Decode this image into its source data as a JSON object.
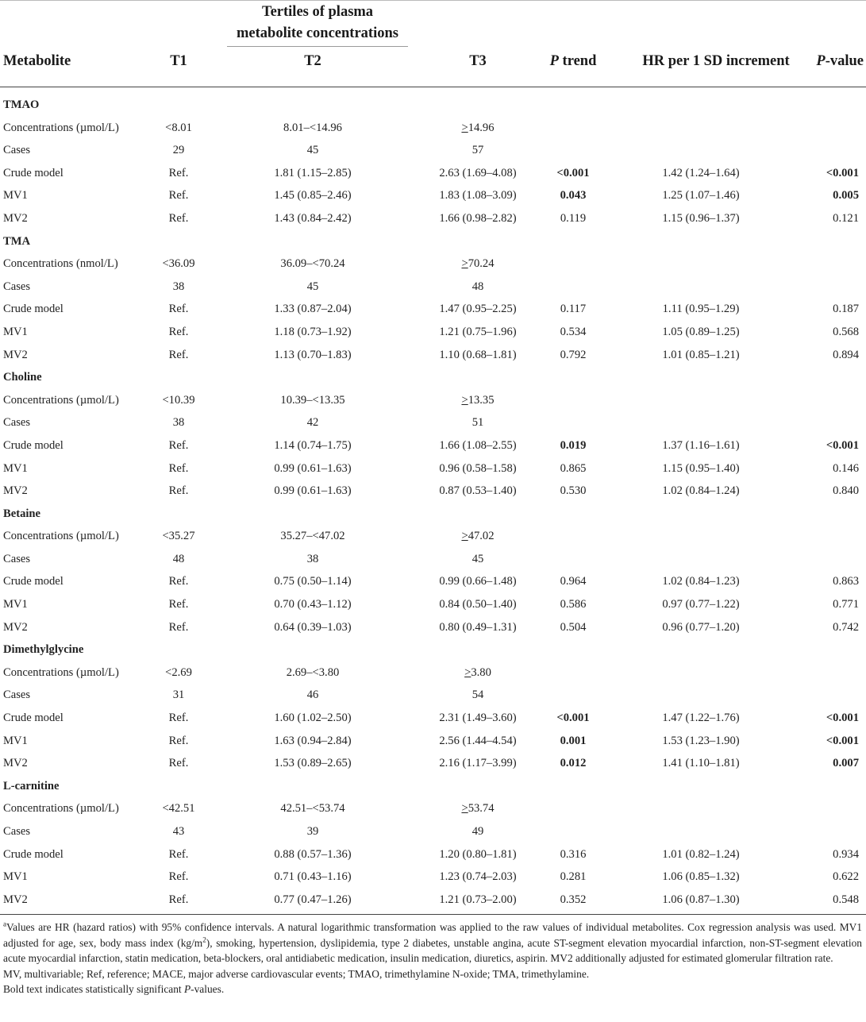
{
  "table": {
    "group_header_line1": "Tertiles of plasma",
    "group_header_line2": "metabolite concentrations",
    "columns": {
      "metabolite": "Metabolite",
      "t1": "T1",
      "t2": "T2",
      "t3": "T3",
      "p_trend_italic": "P",
      "p_trend_rest": " trend",
      "hr": "HR per 1 SD increment",
      "p_value_italic": "P",
      "p_value_rest": "-value"
    },
    "sections": [
      {
        "name": "TMAO",
        "rows": [
          {
            "label": "Concentrations (µmol/L)",
            "t1": "<8.01",
            "t2": "8.01–<14.96",
            "t3_prefix": ">",
            "t3": "14.96",
            "p_trend": "",
            "hr": "",
            "p_value": ""
          },
          {
            "label": "Cases",
            "t1": "29",
            "t2": "45",
            "t3": "57",
            "p_trend": "",
            "hr": "",
            "p_value": ""
          },
          {
            "label": "Crude model",
            "t1": "Ref.",
            "t2": "1.81 (1.15–2.85)",
            "t3": "2.63 (1.69–4.08)",
            "p_trend": "<0.001",
            "p_trend_bold": true,
            "hr": "1.42 (1.24–1.64)",
            "p_value": "<0.001",
            "p_value_bold": true
          },
          {
            "label": "MV1",
            "t1": "Ref.",
            "t2": "1.45 (0.85–2.46)",
            "t3": "1.83 (1.08–3.09)",
            "p_trend": "0.043",
            "p_trend_bold": true,
            "hr": "1.25 (1.07–1.46)",
            "p_value": "0.005",
            "p_value_bold": true
          },
          {
            "label": "MV2",
            "t1": "Ref.",
            "t2": "1.43 (0.84–2.42)",
            "t3": "1.66 (0.98–2.82)",
            "p_trend": "0.119",
            "hr": "1.15 (0.96–1.37)",
            "p_value": "0.121"
          }
        ]
      },
      {
        "name": "TMA",
        "rows": [
          {
            "label": "Concentrations (nmol/L)",
            "t1": "<36.09",
            "t2": "36.09–<70.24",
            "t3_prefix": ">",
            "t3": "70.24",
            "p_trend": "",
            "hr": "",
            "p_value": ""
          },
          {
            "label": "Cases",
            "t1": "38",
            "t2": "45",
            "t3": "48",
            "p_trend": "",
            "hr": "",
            "p_value": ""
          },
          {
            "label": "Crude model",
            "t1": "Ref.",
            "t2": "1.33 (0.87–2.04)",
            "t3": "1.47 (0.95–2.25)",
            "p_trend": "0.117",
            "hr": "1.11 (0.95–1.29)",
            "p_value": "0.187"
          },
          {
            "label": "MV1",
            "t1": "Ref.",
            "t2": "1.18 (0.73–1.92)",
            "t3": "1.21 (0.75–1.96)",
            "p_trend": "0.534",
            "hr": "1.05 (0.89–1.25)",
            "p_value": "0.568"
          },
          {
            "label": "MV2",
            "t1": "Ref.",
            "t2": "1.13 (0.70–1.83)",
            "t3": "1.10 (0.68–1.81)",
            "p_trend": "0.792",
            "hr": "1.01 (0.85–1.21)",
            "p_value": "0.894"
          }
        ]
      },
      {
        "name": "Choline",
        "rows": [
          {
            "label": "Concentrations (µmol/L)",
            "t1": "<10.39",
            "t2": "10.39–<13.35",
            "t3_prefix": ">",
            "t3": "13.35",
            "p_trend": "",
            "hr": "",
            "p_value": ""
          },
          {
            "label": "Cases",
            "t1": "38",
            "t2": "42",
            "t3": "51",
            "p_trend": "",
            "hr": "",
            "p_value": ""
          },
          {
            "label": "Crude model",
            "t1": "Ref.",
            "t2": "1.14 (0.74–1.75)",
            "t3": "1.66 (1.08–2.55)",
            "p_trend": "0.019",
            "p_trend_bold": true,
            "hr": "1.37 (1.16–1.61)",
            "p_value": "<0.001",
            "p_value_bold": true
          },
          {
            "label": "MV1",
            "t1": "Ref.",
            "t2": "0.99 (0.61–1.63)",
            "t3": "0.96 (0.58–1.58)",
            "p_trend": "0.865",
            "hr": "1.15 (0.95–1.40)",
            "p_value": "0.146"
          },
          {
            "label": "MV2",
            "t1": "Ref.",
            "t2": "0.99 (0.61–1.63)",
            "t3": "0.87 (0.53–1.40)",
            "p_trend": "0.530",
            "hr": "1.02 (0.84–1.24)",
            "p_value": "0.840"
          }
        ]
      },
      {
        "name": "Betaine",
        "rows": [
          {
            "label": "Concentrations (µmol/L)",
            "t1": "<35.27",
            "t2": "35.27–<47.02",
            "t3_prefix": ">",
            "t3": "47.02",
            "p_trend": "",
            "hr": "",
            "p_value": ""
          },
          {
            "label": "Cases",
            "t1": "48",
            "t2": "38",
            "t3": "45",
            "p_trend": "",
            "hr": "",
            "p_value": ""
          },
          {
            "label": "Crude model",
            "t1": "Ref.",
            "t2": "0.75 (0.50–1.14)",
            "t3": "0.99 (0.66–1.48)",
            "p_trend": "0.964",
            "hr": "1.02 (0.84–1.23)",
            "p_value": "0.863"
          },
          {
            "label": "MV1",
            "t1": "Ref.",
            "t2": "0.70 (0.43–1.12)",
            "t3": "0.84 (0.50–1.40)",
            "p_trend": "0.586",
            "hr": "0.97 (0.77–1.22)",
            "p_value": "0.771"
          },
          {
            "label": "MV2",
            "t1": "Ref.",
            "t2": "0.64 (0.39–1.03)",
            "t3": "0.80 (0.49–1.31)",
            "p_trend": "0.504",
            "hr": "0.96 (0.77–1.20)",
            "p_value": "0.742"
          }
        ]
      },
      {
        "name": "Dimethylglycine",
        "rows": [
          {
            "label": "Concentrations (µmol/L)",
            "t1": "<2.69",
            "t2": "2.69–<3.80",
            "t3_prefix": ">",
            "t3": "3.80",
            "p_trend": "",
            "hr": "",
            "p_value": ""
          },
          {
            "label": "Cases",
            "t1": "31",
            "t2": "46",
            "t3": "54",
            "p_trend": "",
            "hr": "",
            "p_value": ""
          },
          {
            "label": "Crude model",
            "t1": "Ref.",
            "t2": "1.60 (1.02–2.50)",
            "t3": "2.31 (1.49–3.60)",
            "p_trend": "<0.001",
            "p_trend_bold": true,
            "hr": "1.47 (1.22–1.76)",
            "p_value": "<0.001",
            "p_value_bold": true
          },
          {
            "label": "MV1",
            "t1": "Ref.",
            "t2": "1.63 (0.94–2.84)",
            "t3": "2.56 (1.44–4.54)",
            "p_trend": "0.001",
            "p_trend_bold": true,
            "hr": "1.53 (1.23–1.90)",
            "p_value": "<0.001",
            "p_value_bold": true
          },
          {
            "label": "MV2",
            "t1": "Ref.",
            "t2": "1.53 (0.89–2.65)",
            "t3": "2.16 (1.17–3.99)",
            "p_trend": "0.012",
            "p_trend_bold": true,
            "hr": "1.41 (1.10–1.81)",
            "p_value": "0.007",
            "p_value_bold": true
          }
        ]
      },
      {
        "name": "L-carnitine",
        "rows": [
          {
            "label": "Concentrations (µmol/L)",
            "t1": "<42.51",
            "t2": "42.51–<53.74",
            "t3_prefix": ">",
            "t3": "53.74",
            "p_trend": "",
            "hr": "",
            "p_value": ""
          },
          {
            "label": "Cases",
            "t1": "43",
            "t2": "39",
            "t3": "49",
            "p_trend": "",
            "hr": "",
            "p_value": ""
          },
          {
            "label": "Crude model",
            "t1": "Ref.",
            "t2": "0.88 (0.57–1.36)",
            "t3": "1.20 (0.80–1.81)",
            "p_trend": "0.316",
            "hr": "1.01 (0.82–1.24)",
            "p_value": "0.934"
          },
          {
            "label": "MV1",
            "t1": "Ref.",
            "t2": "0.71 (0.43–1.16)",
            "t3": "1.23 (0.74–2.03)",
            "p_trend": "0.281",
            "hr": "1.06 (0.85–1.32)",
            "p_value": "0.622"
          },
          {
            "label": "MV2",
            "t1": "Ref.",
            "t2": "0.77 (0.47–1.26)",
            "t3": "1.21 (0.73–2.00)",
            "p_trend": "0.352",
            "hr": "1.06 (0.87–1.30)",
            "p_value": "0.548"
          }
        ]
      }
    ]
  },
  "footnotes": {
    "a_marker": "a",
    "a_text_1": "Values are HR (hazard ratios) with 95% confidence intervals. A natural logarithmic transformation was applied to the raw values of individual metabolites. Cox regression analysis was used. MV1 adjusted for age, sex, body mass index (kg/m",
    "a_superscript": "2",
    "a_text_2": "), smoking, hypertension, dyslipidemia, type 2 diabetes, unstable angina, acute ST-segment elevation myocardial infarction, non-ST-segment elevation acute myocardial infarction, statin medication, beta-blockers, oral antidiabetic medication, insulin medication, diuretics, aspirin. MV2 additionally adjusted for estimated glomerular filtration rate.",
    "abbrev": "MV, multivariable; Ref, reference; MACE, major adverse cardiovascular events; TMAO, trimethylamine N-oxide; TMA, trimethylamine.",
    "bold_note_1": "Bold text indicates statistically significant ",
    "bold_note_italic": "P",
    "bold_note_2": "-values."
  }
}
